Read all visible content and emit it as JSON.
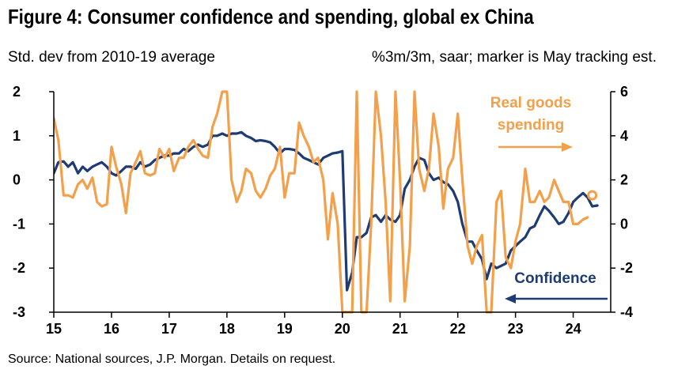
{
  "title": "Figure 4: Consumer confidence and spending, global ex China",
  "subtitle_left": "Std. dev from 2010-19 average",
  "subtitle_right": "%3m/3m, saar; marker is May tracking est.",
  "source": "Source: National sources, J.P. Morgan. Details on request.",
  "colors": {
    "confidence": "#1f3b73",
    "spending": "#f4a04a",
    "axis": "#000000"
  },
  "chart_data": {
    "type": "line",
    "x_ticks": [
      "15",
      "16",
      "17",
      "18",
      "19",
      "20",
      "21",
      "22",
      "23",
      "24"
    ],
    "xlim": [
      2015.0,
      2024.65
    ],
    "y_left": {
      "lim": [
        -3,
        2
      ],
      "ticks": [
        "2",
        "1",
        "0",
        "-1",
        "-2",
        "-3"
      ]
    },
    "y_right": {
      "lim": [
        -4,
        6
      ],
      "ticks": [
        "6",
        "4",
        "2",
        "0",
        "-2",
        "-4"
      ]
    },
    "series": [
      {
        "name": "Confidence",
        "axis": "left",
        "x": [
          2015.0,
          2015.08,
          2015.17,
          2015.25,
          2015.33,
          2015.42,
          2015.5,
          2015.58,
          2015.67,
          2015.75,
          2015.83,
          2015.92,
          2016.0,
          2016.08,
          2016.17,
          2016.25,
          2016.33,
          2016.42,
          2016.5,
          2016.58,
          2016.67,
          2016.75,
          2016.83,
          2016.92,
          2017.0,
          2017.08,
          2017.17,
          2017.25,
          2017.33,
          2017.42,
          2017.5,
          2017.58,
          2017.67,
          2017.75,
          2017.83,
          2017.92,
          2018.0,
          2018.08,
          2018.17,
          2018.25,
          2018.33,
          2018.42,
          2018.5,
          2018.58,
          2018.67,
          2018.75,
          2018.83,
          2018.92,
          2019.0,
          2019.08,
          2019.17,
          2019.25,
          2019.33,
          2019.42,
          2019.5,
          2019.58,
          2019.67,
          2019.75,
          2019.83,
          2019.92,
          2020.0,
          2020.08,
          2020.17,
          2020.25,
          2020.33,
          2020.42,
          2020.5,
          2020.58,
          2020.67,
          2020.75,
          2020.83,
          2020.92,
          2021.0,
          2021.08,
          2021.17,
          2021.25,
          2021.33,
          2021.42,
          2021.5,
          2021.58,
          2021.67,
          2021.75,
          2021.83,
          2021.92,
          2022.0,
          2022.08,
          2022.17,
          2022.25,
          2022.33,
          2022.42,
          2022.5,
          2022.58,
          2022.67,
          2022.75,
          2022.83,
          2022.92,
          2023.0,
          2023.08,
          2023.17,
          2023.25,
          2023.33,
          2023.42,
          2023.5,
          2023.58,
          2023.67,
          2023.75,
          2023.83,
          2023.92,
          2024.0,
          2024.08,
          2024.17,
          2024.25,
          2024.33,
          2024.42
        ],
        "values": [
          0.15,
          0.4,
          0.42,
          0.3,
          0.4,
          0.15,
          0.3,
          0.2,
          0.3,
          0.35,
          0.4,
          0.3,
          0.15,
          0.1,
          0.2,
          0.3,
          0.3,
          0.25,
          0.4,
          0.3,
          0.35,
          0.45,
          0.5,
          0.55,
          0.55,
          0.6,
          0.6,
          0.7,
          0.65,
          0.75,
          0.8,
          0.75,
          0.8,
          1.0,
          1.0,
          1.05,
          1.0,
          1.05,
          1.05,
          1.08,
          1.0,
          0.95,
          0.88,
          0.9,
          0.88,
          0.85,
          0.75,
          0.6,
          0.7,
          0.7,
          0.68,
          0.6,
          0.5,
          0.45,
          0.4,
          0.35,
          0.5,
          0.55,
          0.6,
          0.62,
          0.65,
          -2.5,
          -2.1,
          -1.3,
          -1.3,
          -1.2,
          -0.85,
          -0.8,
          -0.95,
          -0.8,
          -0.9,
          -0.95,
          -0.8,
          -0.2,
          0.0,
          0.3,
          0.5,
          0.45,
          0.15,
          0.0,
          0.05,
          -0.05,
          -0.1,
          -0.25,
          -0.5,
          -1.0,
          -1.4,
          -1.4,
          -1.6,
          -1.8,
          -2.25,
          -1.9,
          -2.0,
          -1.95,
          -1.9,
          -1.6,
          -1.5,
          -1.4,
          -1.3,
          -1.1,
          -1.05,
          -0.8,
          -0.6,
          -0.7,
          -0.85,
          -1.0,
          -0.95,
          -0.75,
          -0.5,
          -0.4,
          -0.3,
          -0.4,
          -0.6,
          -0.58
        ]
      },
      {
        "name": "Real goods spending",
        "axis": "right",
        "x": [
          2015.0,
          2015.08,
          2015.17,
          2015.25,
          2015.33,
          2015.42,
          2015.5,
          2015.58,
          2015.67,
          2015.75,
          2015.83,
          2015.92,
          2016.0,
          2016.08,
          2016.17,
          2016.25,
          2016.33,
          2016.42,
          2016.5,
          2016.58,
          2016.67,
          2016.75,
          2016.83,
          2016.92,
          2017.0,
          2017.08,
          2017.17,
          2017.25,
          2017.33,
          2017.42,
          2017.5,
          2017.58,
          2017.67,
          2017.75,
          2017.83,
          2017.92,
          2018.0,
          2018.08,
          2018.17,
          2018.25,
          2018.33,
          2018.42,
          2018.5,
          2018.58,
          2018.67,
          2018.75,
          2018.83,
          2018.92,
          2019.0,
          2019.08,
          2019.17,
          2019.25,
          2019.33,
          2019.42,
          2019.5,
          2019.58,
          2019.67,
          2019.75,
          2019.83,
          2019.92,
          2020.0,
          2020.08,
          2020.17,
          2020.25,
          2020.33,
          2020.42,
          2020.5,
          2020.58,
          2020.67,
          2020.75,
          2020.83,
          2020.92,
          2021.0,
          2021.08,
          2021.17,
          2021.25,
          2021.33,
          2021.42,
          2021.5,
          2021.58,
          2021.67,
          2021.75,
          2021.83,
          2021.92,
          2022.0,
          2022.08,
          2022.17,
          2022.25,
          2022.33,
          2022.42,
          2022.5,
          2022.58,
          2022.67,
          2022.75,
          2022.83,
          2022.92,
          2023.0,
          2023.08,
          2023.17,
          2023.25,
          2023.33,
          2023.42,
          2023.5,
          2023.58,
          2023.67,
          2023.75,
          2023.83,
          2023.92,
          2024.0,
          2024.08,
          2024.17,
          2024.25
        ],
        "values": [
          4.8,
          3.8,
          1.3,
          1.3,
          1.2,
          1.8,
          2.0,
          1.6,
          2.1,
          1.0,
          0.8,
          0.9,
          3.5,
          2.6,
          1.8,
          0.5,
          2.3,
          2.8,
          3.3,
          2.3,
          2.2,
          2.3,
          3.4,
          3.0,
          3.4,
          2.4,
          3.0,
          3.0,
          3.5,
          3.8,
          3.4,
          3.1,
          3.0,
          4.4,
          5.0,
          6.0,
          6.0,
          2.0,
          1.0,
          1.5,
          2.5,
          2.3,
          1.5,
          1.2,
          1.6,
          2.2,
          2.5,
          3.5,
          1.2,
          2.3,
          2.3,
          4.6,
          4.0,
          3.5,
          2.8,
          3.0,
          2.0,
          -0.7,
          1.4,
          0.0,
          -4.0,
          -4.0,
          -4.0,
          6.0,
          -4.0,
          -4.0,
          0.0,
          6.0,
          4.0,
          1.0,
          -3.5,
          6.0,
          2.0,
          -3.5,
          -1.0,
          6.0,
          2.5,
          1.5,
          2.5,
          5.0,
          3.5,
          0.7,
          2.5,
          3.0,
          5.0,
          2.0,
          -1.0,
          -1.8,
          -1.0,
          -0.5,
          -4.0,
          -4.0,
          1.0,
          1.5,
          -1.5,
          -2.0,
          -0.8,
          0.0,
          2.5,
          1.0,
          1.0,
          1.5,
          1.0,
          1.2,
          2.0,
          1.5,
          1.0,
          1.0,
          0.0,
          0.0,
          0.2,
          0.3
        ],
        "marker": {
          "x": 2024.33,
          "value": 1.3
        }
      }
    ],
    "annotations": [
      {
        "text": "Real goods spending",
        "lines": [
          "Real goods",
          "spending"
        ],
        "arrow": "right"
      },
      {
        "text": "Confidence",
        "arrow": "left"
      }
    ]
  }
}
